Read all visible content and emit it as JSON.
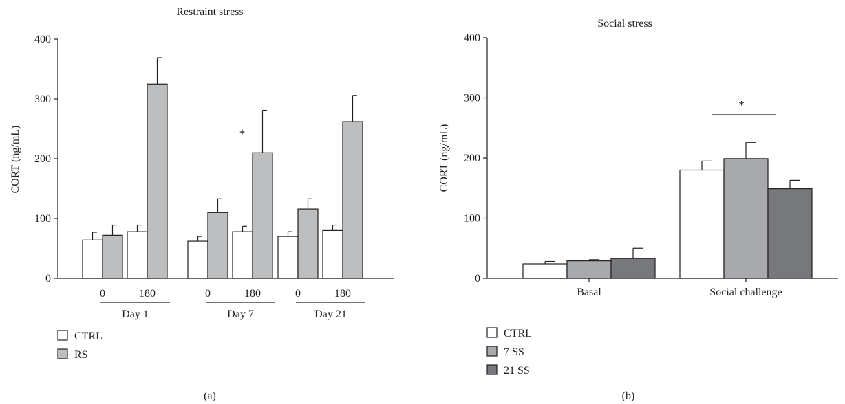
{
  "chart_data": [
    {
      "panel_label": "(a)",
      "type": "bar",
      "title": "Restraint stress",
      "ylabel": "CORT (ng/mL)",
      "xlabel": "",
      "ylim": [
        0,
        400
      ],
      "yticks": [
        0,
        100,
        200,
        300,
        400
      ],
      "grid": false,
      "legend_placement": "bottom-left",
      "series": [
        {
          "name": "CTRL",
          "color": "#ffffff",
          "values": [
            64,
            78,
            62,
            78,
            70,
            80
          ],
          "errors": [
            13,
            11,
            8,
            9,
            8,
            9
          ]
        },
        {
          "name": "RS",
          "color": "#bcbec0",
          "values": [
            72,
            325,
            110,
            210,
            116,
            262
          ],
          "errors": [
            17,
            44,
            23,
            71,
            17,
            44
          ]
        }
      ],
      "groups": [
        {
          "day": "Day 1",
          "timepoints": [
            "0",
            "180"
          ]
        },
        {
          "day": "Day 7",
          "timepoints": [
            "0",
            "180"
          ]
        },
        {
          "day": "Day 21",
          "timepoints": [
            "0",
            "180"
          ]
        }
      ],
      "annotations": [
        {
          "text": "*",
          "group": 1,
          "timepoint": 1
        }
      ]
    },
    {
      "panel_label": "(b)",
      "type": "bar",
      "title": "Social stress",
      "ylabel": "CORT (ng/mL)",
      "xlabel": "",
      "ylim": [
        0,
        400
      ],
      "yticks": [
        0,
        100,
        200,
        300,
        400
      ],
      "grid": false,
      "legend_placement": "bottom-left",
      "categories": [
        "Basal",
        "Social challenge"
      ],
      "series": [
        {
          "name": "CTRL",
          "color": "#ffffff",
          "values": [
            24,
            180
          ],
          "errors": [
            4,
            15
          ]
        },
        {
          "name": "7 SS",
          "color": "#a7a9ac",
          "values": [
            29,
            199
          ],
          "errors": [
            2,
            27
          ]
        },
        {
          "name": "21 SS",
          "color": "#77787b",
          "values": [
            33,
            149
          ],
          "errors": [
            17,
            14
          ]
        }
      ],
      "annotations": [
        {
          "text": "*",
          "category": 1,
          "bracket": true
        }
      ]
    }
  ]
}
